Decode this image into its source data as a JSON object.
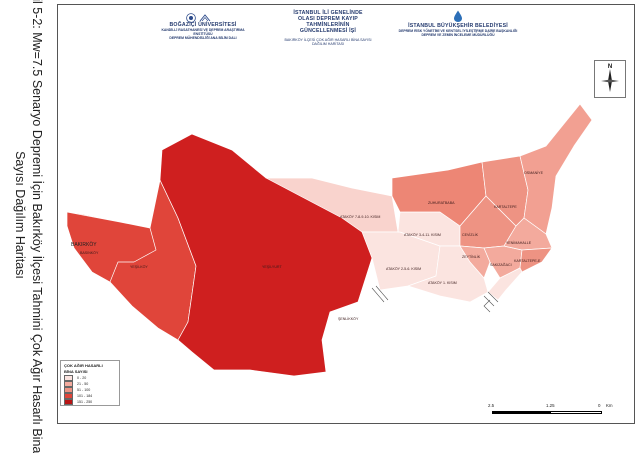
{
  "caption": {
    "line1": "Şekil 5-2: Mw=7.5 Senaryo Depremi İçin Bakırköy İlçesi  Tahmini Çok Ağır Hasarlı Bina",
    "line2": "Sayısı Dağılım Haritası"
  },
  "header": {
    "left_title": "BOĞAZİÇİ ÜNİVERSİTESİ",
    "left_sub1": "KANDİLLİ RASATHANESİ VE DEPREM ARAŞTIRMA ENSTİTÜSÜ",
    "left_sub2": "DEPREM MÜHENDİSLİĞİ ANA BİLİM DALI",
    "center_line1": "İSTANBUL İLİ GENELİNDE",
    "center_line2": "OLASI DEPREM KAYIP TAHMİNLERİNİN",
    "center_line3": "GÜNCELLENMESİ İŞİ",
    "center_sub1": "BAKIRKÖY İLÇESİ ÇOK AĞIR HASARLI BİNA SAYISI",
    "center_sub2": "DAĞILIM HARİTASI",
    "right_title": "İSTANBUL BÜYÜKŞEHİR BELEDİYESİ",
    "right_sub1": "DEPREM RİSK YÖNETİMİ VE KENTSEL İYİLEŞTİRME DAİRE BAŞKANLIĞI",
    "right_sub2": "DEPREM VE ZEMİN İNCELEME MÜDÜRLÜĞÜ"
  },
  "map": {
    "district_label": "BAKIRKÖY",
    "neighborhoods": [
      {
        "name": "BASINKÖY",
        "fill": "#e36150"
      },
      {
        "name": "ŞENLİKKÖY",
        "fill": "#ee9383"
      },
      {
        "name": "YEŞİLKÖY",
        "fill": "#e0453a"
      },
      {
        "name": "YEŞİLYURT",
        "fill": "#cf1f1f"
      },
      {
        "name": "ATAKÖY 7-8-9-10. KISIM",
        "fill": "#f9d3cd"
      },
      {
        "name": "ATAKÖY 2-5-6. KISIM",
        "fill": "#fbe4e0"
      },
      {
        "name": "ATAKÖY 3-4-11. KISIM",
        "fill": "#fbe4e0"
      },
      {
        "name": "ATAKÖY 1. KISIM",
        "fill": "#fbe4e0"
      },
      {
        "name": "ZUHURATBABA",
        "fill": "#ed8675"
      },
      {
        "name": "CEVİZLİK",
        "fill": "#ee9383"
      },
      {
        "name": "KARTALTEPE",
        "fill": "#ee9383"
      },
      {
        "name": "OSMANİYE",
        "fill": "#f2a092"
      },
      {
        "name": "ZEYTİNLİK",
        "fill": "#f3aa9d"
      },
      {
        "name": "SAKIZAĞACI",
        "fill": "#f3aa9d"
      },
      {
        "name": "YENİMAHALLE",
        "fill": "#f3aa9d"
      },
      {
        "name": "KARTALTEPE-E",
        "fill": "#ee9383"
      }
    ]
  },
  "legend": {
    "title1": "ÇOK AĞIR HASARLI",
    "title2": "BİNA SAYISI",
    "classes": [
      {
        "label": "0 - 20",
        "color": "#fbe4e0"
      },
      {
        "label": "21 - 50",
        "color": "#f3aa9d"
      },
      {
        "label": "51 - 100",
        "color": "#ee9383"
      },
      {
        "label": "101 - 184",
        "color": "#e0453a"
      },
      {
        "label": "151 - 250",
        "color": "#b81414"
      }
    ]
  },
  "scalebar": {
    "ticks": [
      "2.5",
      "1.25",
      "0",
      "Km"
    ]
  },
  "north": {
    "label": "N"
  }
}
